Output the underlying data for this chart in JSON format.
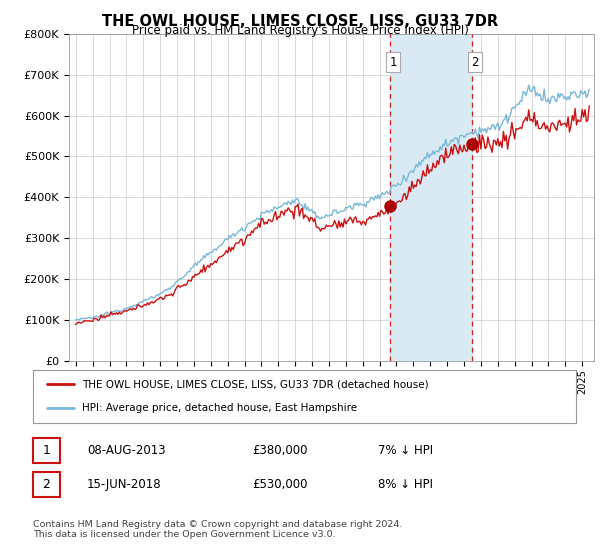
{
  "title": "THE OWL HOUSE, LIMES CLOSE, LISS, GU33 7DR",
  "subtitle": "Price paid vs. HM Land Registry's House Price Index (HPI)",
  "ylim": [
    0,
    800000
  ],
  "yticks": [
    0,
    100000,
    200000,
    300000,
    400000,
    500000,
    600000,
    700000,
    800000
  ],
  "ytick_labels": [
    "£0",
    "£100K",
    "£200K",
    "£300K",
    "£400K",
    "£500K",
    "£600K",
    "£700K",
    "£800K"
  ],
  "xlim_start": 1994.6,
  "xlim_end": 2025.7,
  "sale1_date": 2013.59,
  "sale1_price": 380000,
  "sale1_label": "1",
  "sale2_date": 2018.45,
  "sale2_price": 530000,
  "sale2_label": "2",
  "hpi_color": "#7ab8d9",
  "hpi_fill_color": "#daeaf4",
  "price_color": "#cc1111",
  "marker_color": "#aa0000",
  "vline_color": "#cc2222",
  "shade_color": "#daeaf4",
  "background_color": "#ffffff",
  "grid_color": "#cccccc",
  "legend_entry1": "THE OWL HOUSE, LIMES CLOSE, LISS, GU33 7DR (detached house)",
  "legend_entry2": "HPI: Average price, detached house, East Hampshire",
  "table_row1": [
    "1",
    "08-AUG-2013",
    "£380,000",
    "7% ↓ HPI"
  ],
  "table_row2": [
    "2",
    "15-JUN-2018",
    "£530,000",
    "8% ↓ HPI"
  ],
  "footnote": "Contains HM Land Registry data © Crown copyright and database right 2024.\nThis data is licensed under the Open Government Licence v3.0."
}
